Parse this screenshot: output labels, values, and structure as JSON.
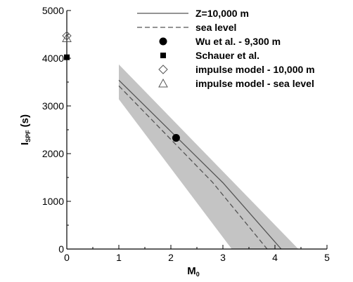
{
  "chart_data": {
    "type": "line",
    "xlabel": "M",
    "xlabel_sub": "0",
    "ylabel": "I",
    "ylabel_sub": "SPF",
    "ylabel_unit": "(s)",
    "xlim": [
      0,
      5
    ],
    "ylim": [
      0,
      5000
    ],
    "xticks": [
      "0",
      "1",
      "2",
      "3",
      "4",
      "5"
    ],
    "yticks": [
      "0",
      "1000",
      "2000",
      "3000",
      "4000",
      "5000"
    ],
    "grid": false,
    "legend_position": "top-right",
    "band": {
      "color": "#c4c4c4",
      "upper": [
        [
          1.0,
          3870
        ],
        [
          4.45,
          0
        ]
      ],
      "lower": [
        [
          1.0,
          3140
        ],
        [
          3.17,
          0
        ]
      ]
    },
    "series": [
      {
        "name": "Z=10,000 m",
        "style": "solid",
        "color": "#555555",
        "x": [
          1.0,
          3.0,
          4.12
        ],
        "y": [
          3540,
          1390,
          0
        ]
      },
      {
        "name": "sea level",
        "style": "dashed",
        "color": "#555555",
        "x": [
          1.0,
          2.8,
          3.85
        ],
        "y": [
          3420,
          1400,
          0
        ]
      }
    ],
    "points": [
      {
        "name": "Wu et al. - 9,300 m",
        "marker": "filled-circle",
        "x": 2.1,
        "y": 2330
      },
      {
        "name": "Schauer et al.",
        "marker": "filled-square",
        "x": 0.0,
        "y": 4020
      },
      {
        "name": "impulse model - 10,000 m",
        "marker": "open-diamond",
        "x": 0.0,
        "y": 4470
      },
      {
        "name": "impulse model - sea level",
        "marker": "open-triangle",
        "x": 0.0,
        "y": 4420
      }
    ]
  }
}
